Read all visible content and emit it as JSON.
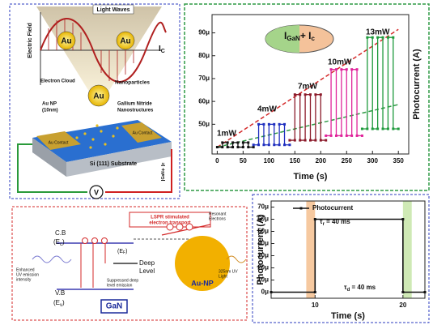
{
  "chart_data": [
    {
      "type": "line",
      "ylabel": "Photocurrent (A)",
      "xlabel": "Time (s)",
      "xlim": [
        -10,
        370
      ],
      "xticks": [
        0,
        50,
        100,
        150,
        200,
        250,
        300,
        350
      ],
      "ylim": [
        3.7e-05,
        9.8e-05
      ],
      "yticks": [
        {
          "value": 5e-05,
          "label": "50μ"
        },
        {
          "value": 6e-05,
          "label": "60μ"
        },
        {
          "value": 7e-05,
          "label": "70μ"
        },
        {
          "value": 8e-05,
          "label": "80μ"
        },
        {
          "value": 9e-05,
          "label": "90μ"
        }
      ],
      "series": [
        {
          "name": "1mW",
          "color": "#111111",
          "x": [
            0,
            10,
            10,
            20,
            20,
            30,
            30,
            40,
            40,
            50,
            50,
            60,
            60,
            70
          ],
          "values": [
            4e-05,
            4e-05,
            4.2e-05,
            4.2e-05,
            4e-05,
            4e-05,
            4.2e-05,
            4.2e-05,
            4e-05,
            4e-05,
            4.2e-05,
            4.2e-05,
            4e-05,
            4e-05
          ]
        },
        {
          "name": "4mW",
          "color": "#1f2fbf",
          "x": [
            70,
            80,
            80,
            90,
            90,
            100,
            100,
            110,
            110,
            120,
            120,
            130,
            130,
            140
          ],
          "values": [
            4.1e-05,
            4.1e-05,
            5e-05,
            5e-05,
            4.1e-05,
            4.1e-05,
            5e-05,
            5e-05,
            4.1e-05,
            4.1e-05,
            5e-05,
            5e-05,
            4.1e-05,
            4.1e-05
          ]
        },
        {
          "name": "7mW",
          "color": "#8b1a2a",
          "x": [
            140,
            150,
            150,
            160,
            160,
            170,
            170,
            180,
            180,
            190,
            190,
            200,
            200,
            210
          ],
          "values": [
            4.3e-05,
            4.3e-05,
            6.3e-05,
            6.3e-05,
            4.3e-05,
            4.3e-05,
            6.3e-05,
            6.3e-05,
            4.3e-05,
            4.3e-05,
            6.3e-05,
            6.3e-05,
            4.3e-05,
            4.3e-05
          ]
        },
        {
          "name": "10mW",
          "color": "#e0259a",
          "x": [
            210,
            220,
            220,
            230,
            230,
            240,
            240,
            250,
            250,
            260,
            260,
            270,
            270,
            280
          ],
          "values": [
            4.5e-05,
            4.5e-05,
            7.4e-05,
            7.4e-05,
            4.5e-05,
            4.5e-05,
            7.4e-05,
            7.4e-05,
            4.5e-05,
            4.5e-05,
            7.4e-05,
            7.4e-05,
            4.5e-05,
            4.5e-05
          ]
        },
        {
          "name": "13mW",
          "color": "#1e9a3c",
          "x": [
            280,
            290,
            290,
            300,
            300,
            310,
            310,
            320,
            320,
            330,
            330,
            340,
            340,
            350
          ],
          "values": [
            4.8e-05,
            4.8e-05,
            8.8e-05,
            8.8e-05,
            4.8e-05,
            4.8e-05,
            8.8e-05,
            8.8e-05,
            4.8e-05,
            4.8e-05,
            8.8e-05,
            8.8e-05,
            4.8e-05,
            4.8e-05
          ]
        }
      ],
      "inset_label": [
        "I",
        "GaN",
        "+ I",
        "c"
      ]
    },
    {
      "type": "line",
      "ylabel": "Photocurrent (A)",
      "xlabel": "Time (s)",
      "xlim": [
        5,
        22.5
      ],
      "xticks": [
        10,
        20
      ],
      "ylim": [
        -5e-06,
        7.5e-05
      ],
      "yticks": [
        {
          "value": 0,
          "label": "0μ"
        },
        {
          "value": 1e-05,
          "label": "10μ"
        },
        {
          "value": 2e-05,
          "label": "20μ"
        },
        {
          "value": 3e-05,
          "label": "30μ"
        },
        {
          "value": 4e-05,
          "label": "40μ"
        },
        {
          "value": 5e-05,
          "label": "50μ"
        },
        {
          "value": 6e-05,
          "label": "60μ"
        },
        {
          "value": 7e-05,
          "label": "70μ"
        }
      ],
      "series": [
        {
          "name": "Photocurrent",
          "color": "#111111",
          "x": [
            5,
            10,
            10,
            20,
            20,
            22.5
          ],
          "values": [
            0,
            0,
            6e-05,
            6e-05,
            0,
            0
          ]
        }
      ],
      "shaded_spans": [
        {
          "x": [
            9,
            10
          ],
          "color": "#f6c9a0"
        },
        {
          "x": [
            20,
            21
          ],
          "color": "#cfe9b5"
        }
      ],
      "annotations": [
        [
          "τ",
          "r",
          " = 40 ms"
        ],
        [
          "τ",
          "d",
          " = 40 ms"
        ]
      ]
    }
  ],
  "device": {
    "field": "Electric Field",
    "light": "Light Waves",
    "au1": "Au",
    "au2": "Au",
    "ic": "I",
    "ic_sub": "C",
    "cloud": "Electron Cloud",
    "np": "Nanoparticles",
    "au3": "Au",
    "aunp": "Au NP",
    "aunp2": "(10nm)",
    "gan": "Gallium Nitride",
    "gan2": "Nanostructures",
    "contact1": "Au Contact",
    "contact2": "Au Contact",
    "si": "Si (111) Substrate",
    "current": "I",
    "current_sub": "GaN",
    "current_plus": "+ I",
    "current_c": "c",
    "v": "V"
  },
  "band": {
    "lspr": "LSPR stimulated",
    "lspr2": "electron transport",
    "resonant": "Resonant",
    "resonant2": "Electrons",
    "cb": "C.B",
    "ec": "(E",
    "ec_sub": "c",
    "ec_end": ")",
    "ef": "(E",
    "ef_sub": "F",
    "ef_end": ")",
    "deep": "Deep",
    "level": "Level",
    "enh": "Enhanced",
    "enh2": "UV emission",
    "enh3": "intensity",
    "supp": "Suppressed deep",
    "supp2": "level emission",
    "uv": "325nm UV",
    "uv2": "Light",
    "vb": "V.B",
    "ev": "(E",
    "ev_sub": "v",
    "ev_end": ")",
    "gan": "GaN",
    "aunp": "Au-NP"
  }
}
